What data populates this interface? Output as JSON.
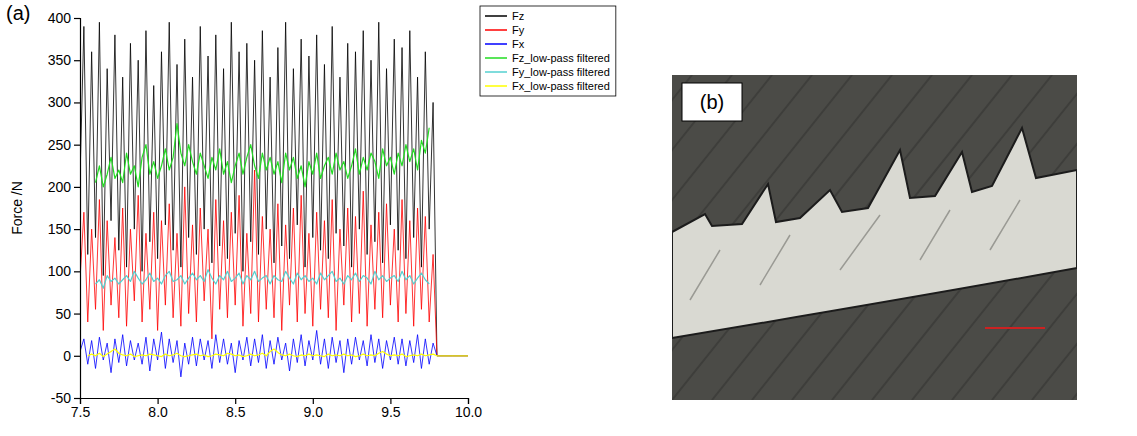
{
  "chart_data": {
    "type": "line",
    "panel_label": "(a)",
    "y_label": "Force /N",
    "grid": false,
    "legend": "top-right",
    "xlim": [
      7.5,
      10.0
    ],
    "xticks": [
      7.5,
      {
        "value": 8,
        "label": "8.0"
      },
      8.5,
      {
        "value": 9,
        "label": "9.0"
      },
      9.5,
      {
        "value": 10,
        "label": "10.0"
      }
    ],
    "ylim": [
      -50,
      400
    ],
    "yticks": [
      -50,
      0,
      50,
      100,
      150,
      200,
      250,
      300,
      350,
      400
    ],
    "x": [
      7.5,
      7.525,
      7.55,
      7.575,
      7.6,
      7.625,
      7.65,
      7.675,
      7.7,
      7.725,
      7.75,
      7.775,
      7.8,
      7.825,
      7.85,
      7.875,
      7.9,
      7.925,
      7.95,
      7.975,
      8.0,
      8.025,
      8.05,
      8.075,
      8.1,
      8.125,
      8.15,
      8.175,
      8.2,
      8.225,
      8.25,
      8.275,
      8.3,
      8.325,
      8.35,
      8.375,
      8.4,
      8.425,
      8.45,
      8.475,
      8.5,
      8.525,
      8.55,
      8.575,
      8.6,
      8.625,
      8.65,
      8.675,
      8.7,
      8.725,
      8.75,
      8.775,
      8.8,
      8.825,
      8.85,
      8.875,
      8.9,
      8.925,
      8.95,
      8.975,
      9.0,
      9.025,
      9.05,
      9.075,
      9.1,
      9.125,
      9.15,
      9.175,
      9.2,
      9.225,
      9.25,
      9.275,
      9.3,
      9.325,
      9.35,
      9.375,
      9.4,
      9.425,
      9.45,
      9.475,
      9.5,
      9.525,
      9.55,
      9.575,
      9.6,
      9.625,
      9.65,
      9.675,
      9.7,
      9.725,
      9.75,
      9.775,
      9.8,
      9.9,
      10.0
    ],
    "series": [
      {
        "name": "Fz",
        "color": "#000000",
        "values": [
          210,
          390,
          120,
          360,
          140,
          395,
          95,
          340,
          160,
          380,
          125,
          330,
          105,
          370,
          150,
          350,
          100,
          385,
          135,
          320,
          115,
          360,
          155,
          395,
          125,
          345,
          105,
          375,
          140,
          330,
          120,
          390,
          150,
          355,
          110,
          380,
          130,
          340,
          115,
          395,
          145,
          360,
          100,
          370,
          135,
          350,
          120,
          385,
          150,
          330,
          110,
          365,
          130,
          395,
          115,
          340,
          155,
          375,
          105,
          355,
          140,
          380,
          125,
          345,
          115,
          390,
          145,
          330,
          130,
          370,
          105,
          360,
          150,
          385,
          120,
          350,
          135,
          395,
          110,
          340,
          155,
          375,
          125,
          365,
          115,
          385,
          140,
          330,
          105,
          360,
          150,
          300,
          0,
          0,
          0
        ]
      },
      {
        "name": "Fy",
        "color": "#ff0000",
        "values": [
          90,
          170,
          40,
          150,
          55,
          185,
          30,
          160,
          60,
          140,
          45,
          175,
          35,
          150,
          65,
          190,
          40,
          145,
          55,
          170,
          30,
          160,
          60,
          180,
          45,
          145,
          35,
          200,
          50,
          155,
          40,
          175,
          65,
          150,
          20,
          185,
          55,
          160,
          45,
          170,
          60,
          190,
          35,
          145,
          50,
          220,
          40,
          165,
          55,
          150,
          45,
          180,
          30,
          155,
          60,
          175,
          40,
          190,
          50,
          145,
          35,
          170,
          55,
          160,
          45,
          185,
          30,
          150,
          60,
          175,
          40,
          165,
          50,
          195,
          35,
          155,
          55,
          170,
          45,
          180,
          60,
          150,
          40,
          185,
          50,
          160,
          35,
          175,
          55,
          165,
          40,
          120,
          0,
          0,
          0
        ]
      },
      {
        "name": "Fx",
        "color": "#0000ff",
        "values": [
          5,
          20,
          -10,
          18,
          -15,
          22,
          -5,
          15,
          -20,
          20,
          -8,
          25,
          -12,
          18,
          -5,
          15,
          -10,
          22,
          -18,
          20,
          -5,
          28,
          -15,
          20,
          -8,
          18,
          -25,
          15,
          -10,
          22,
          -12,
          20,
          -5,
          18,
          -15,
          25,
          -8,
          20,
          -10,
          15,
          -20,
          18,
          -5,
          22,
          -12,
          20,
          -8,
          25,
          -15,
          18,
          -10,
          22,
          -5,
          15,
          -18,
          20,
          -8,
          25,
          -12,
          18,
          -5,
          30,
          -10,
          20,
          -15,
          22,
          -8,
          18,
          -20,
          20,
          -10,
          22,
          -5,
          18,
          -12,
          25,
          -8,
          20,
          -15,
          18,
          -5,
          22,
          -10,
          20,
          -12,
          18,
          -8,
          25,
          -15,
          20,
          -10,
          15,
          0,
          0,
          0
        ]
      },
      {
        "name": "Fz_low-pass filtered",
        "color": "#22dd22",
        "values": [
          null,
          null,
          null,
          null,
          205,
          225,
          200,
          215,
          235,
          210,
          220,
          205,
          240,
          215,
          225,
          200,
          235,
          250,
          215,
          230,
          210,
          225,
          245,
          220,
          235,
          275,
          240,
          225,
          250,
          230,
          215,
          240,
          225,
          210,
          235,
          220,
          245,
          215,
          230,
          205,
          225,
          240,
          215,
          235,
          250,
          225,
          210,
          240,
          220,
          235,
          215,
          230,
          205,
          240,
          220,
          235,
          210,
          225,
          200,
          230,
          215,
          240,
          210,
          225,
          235,
          215,
          240,
          220,
          230,
          210,
          225,
          245,
          215,
          235,
          220,
          240,
          230,
          210,
          245,
          225,
          235,
          215,
          240,
          225,
          250,
          230,
          245,
          220,
          255,
          240,
          270,
          null,
          null,
          null,
          null
        ]
      },
      {
        "name": "Fy_low-pass filtered",
        "color": "#55d0d0",
        "values": [
          null,
          null,
          null,
          null,
          85,
          90,
          80,
          95,
          88,
          92,
          85,
          90,
          95,
          88,
          100,
          92,
          85,
          90,
          98,
          88,
          92,
          85,
          95,
          100,
          88,
          90,
          95,
          85,
          92,
          98,
          90,
          95,
          88,
          102,
          92,
          85,
          95,
          90,
          100,
          88,
          92,
          98,
          85,
          95,
          90,
          100,
          88,
          92,
          95,
          85,
          95,
          90,
          88,
          100,
          92,
          85,
          98,
          90,
          95,
          88,
          92,
          85,
          98,
          90,
          95,
          100,
          88,
          92,
          85,
          95,
          90,
          98,
          88,
          95,
          92,
          85,
          100,
          90,
          95,
          88,
          92,
          95,
          88,
          100,
          90,
          95,
          85,
          92,
          98,
          90,
          85,
          null,
          null,
          null,
          null
        ]
      },
      {
        "name": "Fx_low-pass filtered",
        "color": "#ffff00",
        "values": [
          null,
          null,
          0,
          2,
          0,
          3,
          -1,
          2,
          5,
          8,
          3,
          1,
          0,
          2,
          -1,
          0,
          1,
          0,
          2,
          1,
          0,
          -1,
          2,
          0,
          1,
          3,
          0,
          -1,
          0,
          1,
          2,
          0,
          1,
          -1,
          0,
          2,
          1,
          0,
          3,
          2,
          0,
          1,
          -1,
          0,
          2,
          0,
          1,
          3,
          0,
          5,
          8,
          4,
          1,
          0,
          2,
          0,
          -1,
          1,
          0,
          2,
          0,
          1,
          0,
          -1,
          2,
          0,
          1,
          0,
          2,
          0,
          1,
          -1,
          0,
          2,
          0,
          1,
          0,
          3,
          5,
          2,
          0,
          1,
          0,
          2,
          -1,
          0,
          1,
          0,
          2,
          0,
          1,
          2,
          0,
          0,
          0
        ]
      }
    ]
  },
  "image_panel": {
    "label": "(b)"
  }
}
